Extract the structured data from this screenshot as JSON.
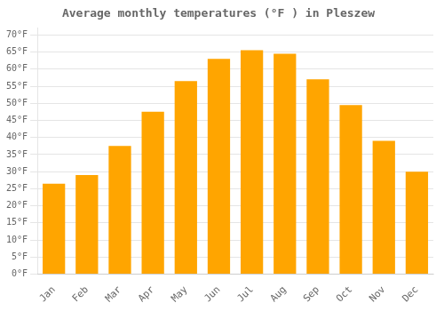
{
  "chart_data": {
    "type": "bar",
    "title": "Average monthly temperatures (°F ) in Pleszew",
    "categories": [
      "Jan",
      "Feb",
      "Mar",
      "Apr",
      "May",
      "Jun",
      "Jul",
      "Aug",
      "Sep",
      "Oct",
      "Nov",
      "Dec"
    ],
    "values": [
      26.5,
      29.0,
      37.5,
      47.5,
      56.5,
      63.0,
      65.5,
      64.5,
      57.0,
      49.5,
      39.0,
      30.0
    ],
    "color": "#FFA500",
    "ylim": [
      0,
      72
    ],
    "yticks": [
      {
        "value": 0,
        "label": "0°F"
      },
      {
        "value": 5,
        "label": "5°F"
      },
      {
        "value": 10,
        "label": "10°F"
      },
      {
        "value": 15,
        "label": "15°F"
      },
      {
        "value": 20,
        "label": "20°F"
      },
      {
        "value": 25,
        "label": "25°F"
      },
      {
        "value": 30,
        "label": "30°F"
      },
      {
        "value": 35,
        "label": "35°F"
      },
      {
        "value": 40,
        "label": "40°F"
      },
      {
        "value": 45,
        "label": "45°F"
      },
      {
        "value": 50,
        "label": "50°F"
      },
      {
        "value": 55,
        "label": "55°F"
      },
      {
        "value": 60,
        "label": "60°F"
      },
      {
        "value": 65,
        "label": "65°F"
      },
      {
        "value": 70,
        "label": "70°F"
      }
    ],
    "grid": true
  }
}
